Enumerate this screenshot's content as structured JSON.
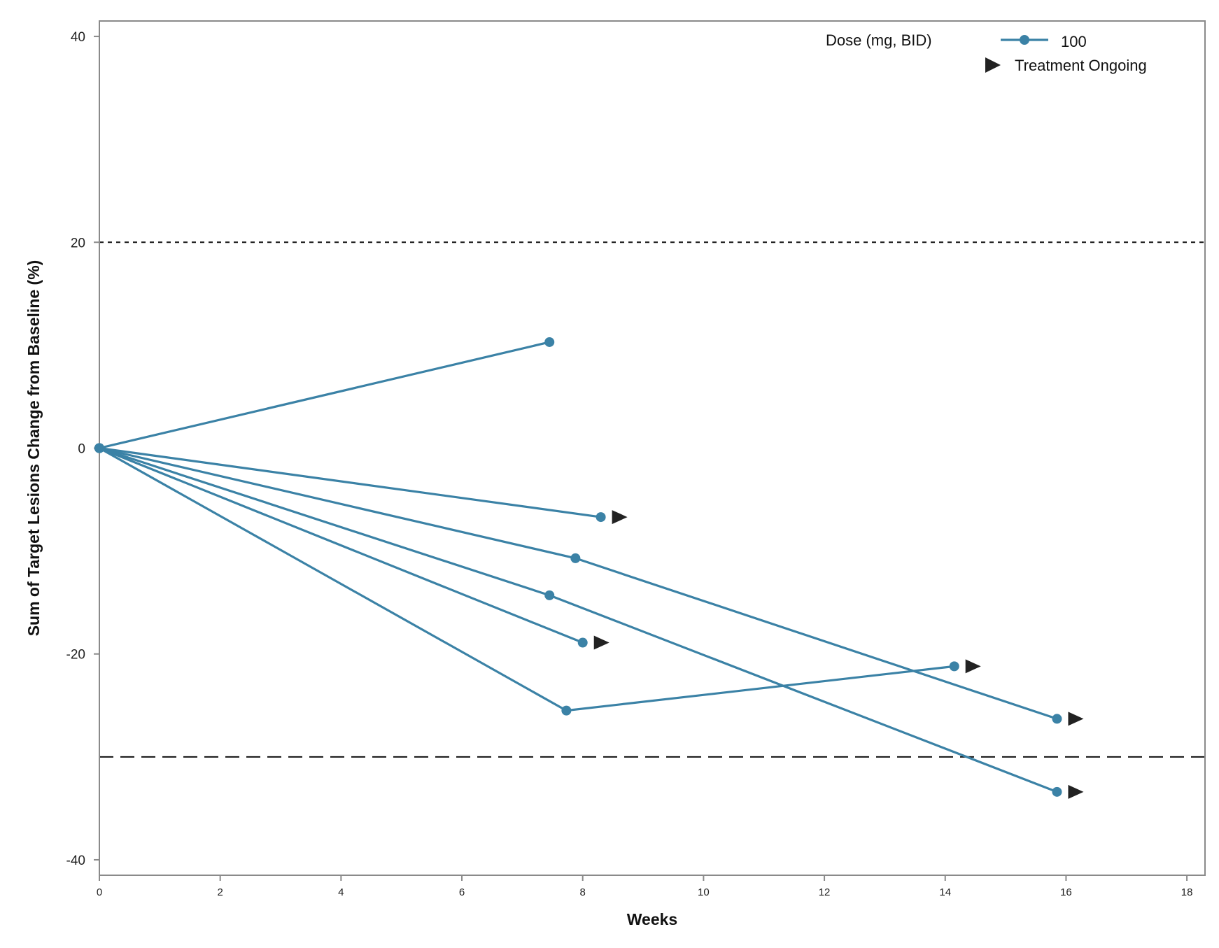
{
  "chart_data": {
    "type": "line",
    "xlabel": "Weeks",
    "ylabel": "Sum of Target Lesions Change from Baseline (%)",
    "xlim": [
      0,
      18.3
    ],
    "ylim": [
      -41.5,
      41.5
    ],
    "x_ticks": [
      0,
      2,
      4,
      6,
      8,
      10,
      12,
      14,
      16,
      18
    ],
    "y_ticks": [
      -40,
      -20,
      0,
      20,
      40
    ],
    "x_tick_labels": [
      "0",
      "2",
      "4",
      "6",
      "8",
      "10",
      "12",
      "14",
      "16",
      "18"
    ],
    "y_tick_labels": [
      "-40",
      "-20",
      "0",
      "20",
      "40"
    ],
    "reference_lines": [
      {
        "y": 20,
        "style": "dotted"
      },
      {
        "y": -30,
        "style": "dashed"
      }
    ],
    "legend": {
      "title": "Dose (mg, BID)",
      "placement": "top-right",
      "entries": [
        {
          "label": "100",
          "marker": "line-circle",
          "color": "#3b82a6"
        },
        {
          "label": "Treatment Ongoing",
          "marker": "right-triangle",
          "color": "#222222"
        }
      ]
    },
    "series": [
      {
        "points": [
          [
            0,
            0
          ],
          [
            7.45,
            10.3
          ]
        ],
        "ongoing": false
      },
      {
        "points": [
          [
            0,
            0
          ],
          [
            8.3,
            -6.7
          ]
        ],
        "ongoing": true
      },
      {
        "points": [
          [
            0,
            0
          ],
          [
            7.88,
            -10.7
          ],
          [
            15.85,
            -26.3
          ]
        ],
        "ongoing": true
      },
      {
        "points": [
          [
            0,
            0
          ],
          [
            7.45,
            -14.3
          ],
          [
            15.85,
            -33.4
          ]
        ],
        "ongoing": true
      },
      {
        "points": [
          [
            0,
            0
          ],
          [
            8.0,
            -18.9
          ]
        ],
        "ongoing": true
      },
      {
        "points": [
          [
            0,
            0
          ],
          [
            7.73,
            -25.5
          ],
          [
            14.15,
            -21.2
          ]
        ],
        "ongoing": true
      }
    ]
  },
  "colors": {
    "series": "#3b82a6",
    "ongoing_marker": "#222222",
    "frame": "#8a8a8a"
  }
}
